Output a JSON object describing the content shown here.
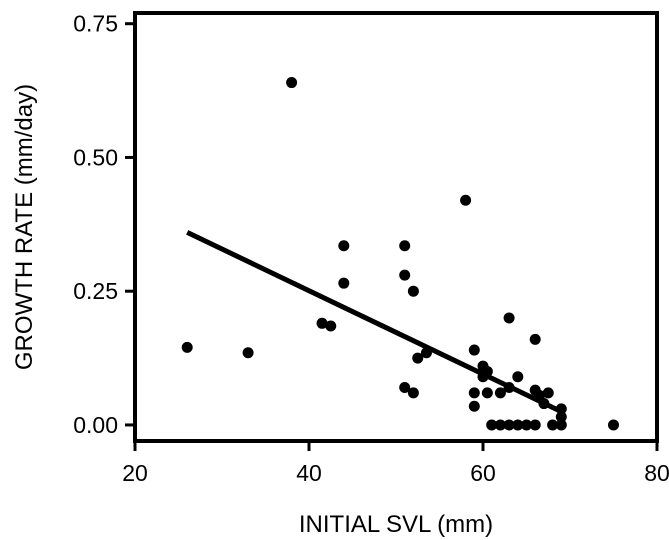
{
  "chart_data": {
    "type": "scatter",
    "title": "",
    "xlabel": "INITIAL SVL (mm)",
    "ylabel": "GROWTH RATE (mm/day)",
    "xlim": [
      20,
      80
    ],
    "ylim": [
      -0.03,
      0.77
    ],
    "x_ticks": [
      {
        "value": 20,
        "label": "20"
      },
      {
        "value": 40,
        "label": "40"
      },
      {
        "value": 60,
        "label": "60"
      },
      {
        "value": 80,
        "label": "80"
      }
    ],
    "y_ticks": [
      {
        "value": 0.0,
        "label": "0.00"
      },
      {
        "value": 0.25,
        "label": "0.25"
      },
      {
        "value": 0.5,
        "label": "0.50"
      },
      {
        "value": 0.75,
        "label": "0.75"
      }
    ],
    "grid": false,
    "legend": "none",
    "colors": {
      "marker": "#000000",
      "line": "#000000",
      "frame": "#000000"
    },
    "series": [
      {
        "type": "scatter",
        "points": [
          [
            26,
            0.145
          ],
          [
            33,
            0.135
          ],
          [
            38,
            0.64
          ],
          [
            41.5,
            0.19
          ],
          [
            42.5,
            0.185
          ],
          [
            44,
            0.335
          ],
          [
            44,
            0.265
          ],
          [
            51,
            0.335
          ],
          [
            51,
            0.28
          ],
          [
            51,
            0.07
          ],
          [
            52,
            0.25
          ],
          [
            52,
            0.06
          ],
          [
            52.5,
            0.125
          ],
          [
            53.5,
            0.135
          ],
          [
            58,
            0.42
          ],
          [
            59,
            0.14
          ],
          [
            59,
            0.06
          ],
          [
            59,
            0.035
          ],
          [
            60,
            0.11
          ],
          [
            60,
            0.09
          ],
          [
            60.5,
            0.06
          ],
          [
            60.5,
            0.1
          ],
          [
            61,
            0.0
          ],
          [
            62,
            0.06
          ],
          [
            62,
            0.0
          ],
          [
            63,
            0.2
          ],
          [
            63,
            0.07
          ],
          [
            63,
            0.0
          ],
          [
            64,
            0.09
          ],
          [
            64,
            0.0
          ],
          [
            65,
            0.0
          ],
          [
            66,
            0.16
          ],
          [
            66,
            0.065
          ],
          [
            66,
            0.0
          ],
          [
            66.5,
            0.055
          ],
          [
            67,
            0.04
          ],
          [
            67.5,
            0.06
          ],
          [
            68,
            0.0
          ],
          [
            69,
            0.03
          ],
          [
            69,
            0.015
          ],
          [
            69,
            0.0
          ],
          [
            75,
            0.0
          ]
        ]
      },
      {
        "type": "line",
        "points": [
          [
            26,
            0.36
          ],
          [
            69,
            0.025
          ]
        ]
      }
    ]
  }
}
